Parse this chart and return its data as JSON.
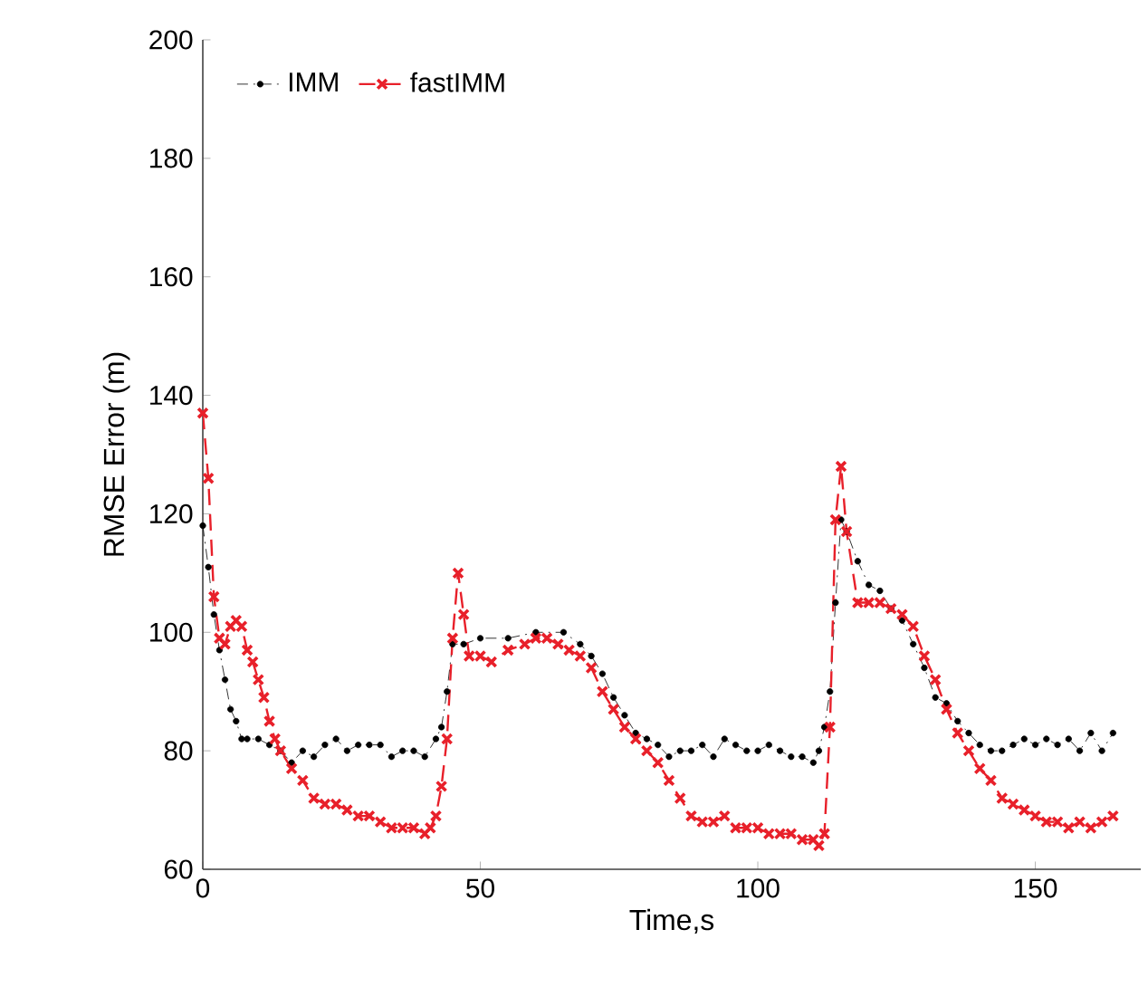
{
  "chart_data": {
    "type": "line",
    "xlabel": "Time,s",
    "ylabel": "RMSE Error (m)",
    "xlim": [
      0,
      169
    ],
    "ylim": [
      60,
      200
    ],
    "xticks": [
      0,
      50,
      100,
      150
    ],
    "yticks": [
      60,
      80,
      100,
      120,
      140,
      160,
      180,
      200
    ],
    "grid": false,
    "legend": "top left",
    "series": [
      {
        "name": "IMM",
        "color": "#000000",
        "marker": "circle",
        "line_style": "dashed",
        "x": [
          0,
          1,
          2,
          3,
          4,
          5,
          6,
          7,
          8,
          10,
          12,
          14,
          16,
          18,
          20,
          22,
          24,
          26,
          28,
          30,
          32,
          34,
          36,
          38,
          40,
          42,
          43,
          44,
          45,
          47,
          50,
          55,
          60,
          65,
          68,
          70,
          72,
          74,
          76,
          78,
          80,
          82,
          84,
          86,
          88,
          90,
          92,
          94,
          96,
          98,
          100,
          102,
          104,
          106,
          108,
          110,
          111,
          112,
          113,
          114,
          115,
          116,
          118,
          120,
          122,
          124,
          126,
          128,
          130,
          132,
          134,
          136,
          138,
          140,
          142,
          144,
          146,
          148,
          150,
          152,
          154,
          156,
          158,
          160,
          162,
          164
        ],
        "values": [
          118,
          111,
          103,
          97,
          92,
          87,
          85,
          82,
          82,
          82,
          81,
          80,
          78,
          80,
          79,
          81,
          82,
          80,
          81,
          81,
          81,
          79,
          80,
          80,
          79,
          82,
          84,
          90,
          98,
          98,
          99,
          99,
          100,
          100,
          98,
          96,
          93,
          89,
          86,
          83,
          82,
          81,
          79,
          80,
          80,
          81,
          79,
          82,
          81,
          80,
          80,
          81,
          80,
          79,
          79,
          78,
          80,
          84,
          90,
          105,
          119,
          117,
          112,
          108,
          107,
          104,
          102,
          98,
          94,
          89,
          88,
          85,
          83,
          81,
          80,
          80,
          81,
          82,
          81,
          82,
          81,
          82,
          80,
          83,
          80,
          83
        ]
      },
      {
        "name": "fastIMM",
        "color": "#e8202a",
        "marker": "cross",
        "line_style": "dashed",
        "x": [
          0,
          1,
          2,
          3,
          4,
          5,
          6,
          7,
          8,
          9,
          10,
          11,
          12,
          13,
          14,
          16,
          18,
          20,
          22,
          24,
          26,
          28,
          30,
          32,
          34,
          36,
          38,
          40,
          41,
          42,
          43,
          44,
          45,
          46,
          47,
          48,
          50,
          52,
          55,
          58,
          60,
          62,
          64,
          66,
          68,
          70,
          72,
          74,
          76,
          78,
          80,
          82,
          84,
          86,
          88,
          90,
          92,
          94,
          96,
          98,
          100,
          102,
          104,
          106,
          108,
          110,
          111,
          112,
          113,
          114,
          115,
          116,
          118,
          120,
          122,
          124,
          126,
          128,
          130,
          132,
          134,
          136,
          138,
          140,
          142,
          144,
          146,
          148,
          150,
          152,
          154,
          156,
          158,
          160,
          162,
          164
        ],
        "values": [
          137,
          126,
          106,
          99,
          98,
          101,
          102,
          101,
          97,
          95,
          92,
          89,
          85,
          82,
          80,
          77,
          75,
          72,
          71,
          71,
          70,
          69,
          69,
          68,
          67,
          67,
          67,
          66,
          67,
          69,
          74,
          82,
          99,
          110,
          103,
          96,
          96,
          95,
          97,
          98,
          99,
          99,
          98,
          97,
          96,
          94,
          90,
          87,
          84,
          82,
          80,
          78,
          75,
          72,
          69,
          68,
          68,
          69,
          67,
          67,
          67,
          66,
          66,
          66,
          65,
          65,
          64,
          66,
          84,
          119,
          128,
          117,
          105,
          105,
          105,
          104,
          103,
          101,
          96,
          92,
          87,
          83,
          80,
          77,
          75,
          72,
          71,
          70,
          69,
          68,
          68,
          67,
          68,
          67,
          68,
          69
        ]
      }
    ]
  }
}
